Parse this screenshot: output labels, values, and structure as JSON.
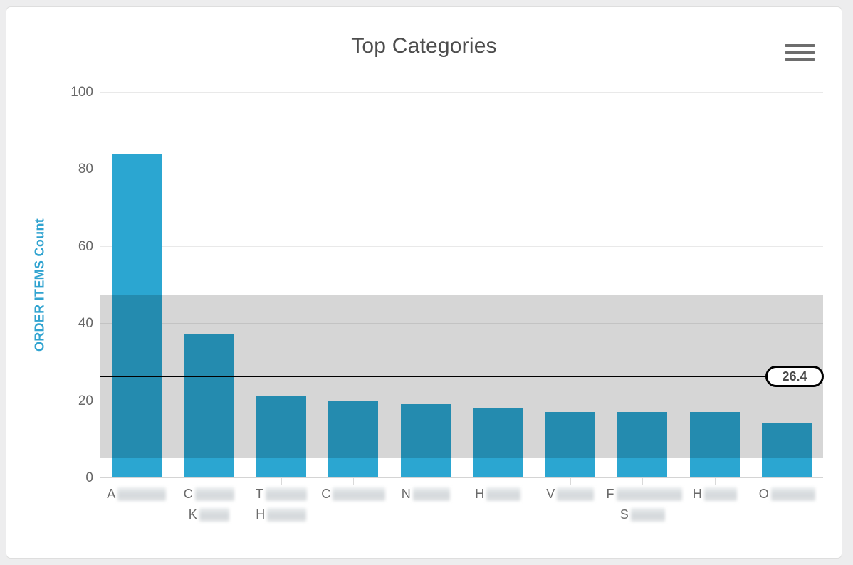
{
  "card": {
    "type": "chart-panel"
  },
  "chart": {
    "title": "Top Categories",
    "menu_icon": "hamburger-icon",
    "y_axis_title": "ORDER ITEMS Count"
  },
  "colors": {
    "title": "#4d4d4d",
    "bar": "#2ba6d1",
    "band_overlay": "rgba(0,0,0,0.16)",
    "mean_line": "#000000",
    "axis_title": "#30a3d0",
    "tick_label": "#686868",
    "grid": "#e9e9e9",
    "axis_line": "#d4d4d4"
  },
  "chart_data": {
    "type": "bar",
    "title": "Top Categories",
    "xlabel": "",
    "ylabel": "ORDER ITEMS Count",
    "ylim": [
      0,
      100
    ],
    "yticks": [
      0,
      20,
      40,
      60,
      80,
      100
    ],
    "grid": true,
    "legend": "none",
    "categories": [
      "A…",
      "C… K…",
      "T… H…",
      "C…",
      "N…",
      "H…",
      "V…",
      "F… S…",
      "H…",
      "O…"
    ],
    "categories_note": "category label text is blurred/redacted in the screenshot; only leading letters are visible",
    "values": [
      84,
      37,
      21,
      20,
      19,
      18,
      17,
      17,
      17,
      14
    ],
    "mean_line": {
      "value": 26.4,
      "label": "26.4"
    },
    "std_band": {
      "from": 5,
      "to": 47.5
    },
    "x_labels_render": [
      {
        "line1": "A",
        "w1": 68
      },
      {
        "line1": "C",
        "w1": 55,
        "line2": "K",
        "w2": 42
      },
      {
        "line1": "T",
        "w1": 58,
        "line2": "H",
        "w2": 55
      },
      {
        "line1": "C",
        "w1": 74
      },
      {
        "line1": "N",
        "w1": 52
      },
      {
        "line1": "H",
        "w1": 48
      },
      {
        "line1": "V",
        "w1": 52
      },
      {
        "line1": "F",
        "w1": 92,
        "line2": "S",
        "w2": 48
      },
      {
        "line1": "H",
        "w1": 46
      },
      {
        "line1": "O",
        "w1": 62
      }
    ]
  }
}
